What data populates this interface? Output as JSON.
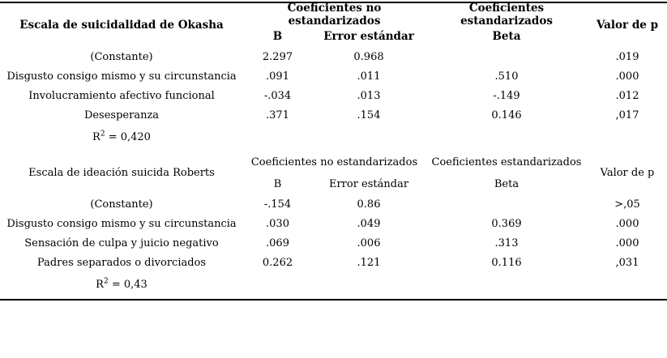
{
  "table": {
    "sections": [
      {
        "title": "Escala de suicidalidad de Okasha",
        "header": {
          "group1": "Coeficientes no estandarizados",
          "group2": "Coeficientes estandarizados",
          "p": "Valor de p",
          "b": "B",
          "se": "Error estándar",
          "beta": "Beta"
        },
        "rows": [
          {
            "label": "(Constante)",
            "b": "2.297",
            "se": "0.968",
            "beta": "",
            "p": ".019"
          },
          {
            "label": "Disgusto consigo mismo y su circunstancia",
            "b": ".091",
            "se": ".011",
            "beta": ".510",
            "p": ".000"
          },
          {
            "label": "Involucramiento afectivo funcional",
            "b": "-.034",
            "se": ".013",
            "beta": "-.149",
            "p": ".012"
          },
          {
            "label": "Desesperanza",
            "b": ".371",
            "se": ".154",
            "beta": "0.146",
            "p": ",017"
          }
        ],
        "r2": {
          "base": "R",
          "sup": "2",
          "rest": " = 0,420"
        }
      },
      {
        "title": "Escala de ideación suicida Roberts",
        "header": {
          "group1": "Coeficientes no estandarizados",
          "group2": "Coeficientes estandarizados",
          "p": "Valor de p",
          "b": "B",
          "se": "Error estándar",
          "beta": "Beta"
        },
        "rows": [
          {
            "label": "(Constante)",
            "b": "-.154",
            "se": "0.86",
            "beta": "",
            "p": ">,05"
          },
          {
            "label": "Disgusto consigo mismo y su circunstancia",
            "b": ".030",
            "se": ".049",
            "beta": "0.369",
            "p": ".000"
          },
          {
            "label": "Sensación de culpa y juicio negativo",
            "b": ".069",
            "se": ".006",
            "beta": ".313",
            "p": ".000"
          },
          {
            "label": "Padres separados o divorciados",
            "b": "0.262",
            "se": ".121",
            "beta": "0.116",
            "p": ",031"
          }
        ],
        "r2": {
          "base": "R",
          "sup": "2",
          "rest": " = 0,43"
        }
      }
    ]
  }
}
